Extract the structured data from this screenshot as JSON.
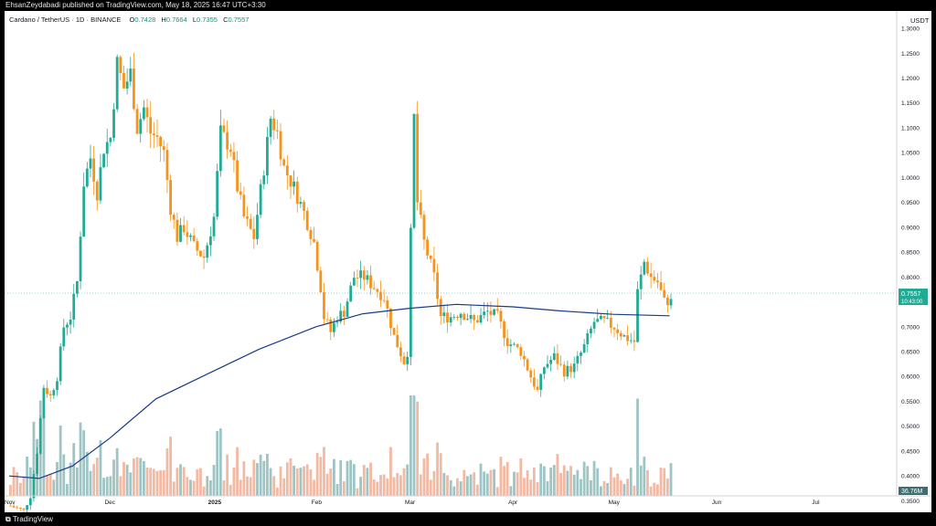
{
  "header": {
    "publish_line": "EhsanZeydabadi published on TradingView.com, May 18, 2025 16:47 UTC+3:30"
  },
  "footer": {
    "brand": "TradingView"
  },
  "legend": {
    "symbol": "Cardano / TetherUS · 1D · BINANCE",
    "o_key": "O",
    "o_val": "0.7428",
    "h_key": "H",
    "h_val": "0.7664",
    "l_key": "L",
    "l_val": "0.7355",
    "c_key": "C",
    "c_val": "0.7557"
  },
  "price_scale": {
    "currency": "USDT",
    "last_price": "0.7557",
    "countdown": "10:43:00",
    "volume_label": "36.76M"
  },
  "colors": {
    "up": "#22ab94",
    "down": "#f7931a",
    "ma": "#1a3a8a",
    "vol_up": "#9fc4c4",
    "vol_down": "#f2b9a3",
    "price_line": "#26a69a"
  },
  "chart_data": {
    "type": "candlestick",
    "title": "Cardano / TetherUS · 1D · BINANCE",
    "y_ticks": [
      "1.3000",
      "1.2500",
      "1.2000",
      "1.1500",
      "1.1000",
      "1.0500",
      "1.0000",
      "0.9500",
      "0.9000",
      "0.8500",
      "0.8000",
      "0.7500",
      "0.7000",
      "0.6500",
      "0.6000",
      "0.5500",
      "0.5000",
      "0.4500",
      "0.4000",
      "0.3500"
    ],
    "x_ticks": [
      "Nov",
      "Dec",
      "2025",
      "Feb",
      "Mar",
      "Apr",
      "May",
      "Jun",
      "Jul"
    ],
    "ylim": [
      0.325,
      1.335
    ],
    "last": {
      "open": 0.7428,
      "high": 0.7664,
      "low": 0.7355,
      "close": 0.7557
    },
    "price_path": [
      [
        "2024-11-01",
        0.34
      ],
      [
        "2024-11-05",
        0.33
      ],
      [
        "2024-11-07",
        0.36
      ],
      [
        "2024-11-09",
        0.45
      ],
      [
        "2024-11-11",
        0.58
      ],
      [
        "2024-11-13",
        0.56
      ],
      [
        "2024-11-15",
        0.6
      ],
      [
        "2024-11-17",
        0.7
      ],
      [
        "2024-11-19",
        0.72
      ],
      [
        "2024-11-21",
        0.79
      ],
      [
        "2024-11-23",
        0.99
      ],
      [
        "2024-11-25",
        1.04
      ],
      [
        "2024-11-27",
        0.97
      ],
      [
        "2024-11-29",
        1.06
      ],
      [
        "2024-12-01",
        1.08
      ],
      [
        "2024-12-03",
        1.23
      ],
      [
        "2024-12-05",
        1.18
      ],
      [
        "2024-12-07",
        1.21
      ],
      [
        "2024-12-09",
        1.1
      ],
      [
        "2024-12-11",
        1.14
      ],
      [
        "2024-12-13",
        1.09
      ],
      [
        "2024-12-15",
        1.08
      ],
      [
        "2024-12-17",
        1.05
      ],
      [
        "2024-12-19",
        0.94
      ],
      [
        "2024-12-21",
        0.88
      ],
      [
        "2024-12-23",
        0.9
      ],
      [
        "2024-12-26",
        0.86
      ],
      [
        "2024-12-29",
        0.84
      ],
      [
        "2025-01-01",
        0.92
      ],
      [
        "2025-01-03",
        1.09
      ],
      [
        "2025-01-06",
        1.06
      ],
      [
        "2025-01-08",
        0.98
      ],
      [
        "2025-01-10",
        0.92
      ],
      [
        "2025-01-13",
        0.88
      ],
      [
        "2025-01-16",
        1.02
      ],
      [
        "2025-01-18",
        1.12
      ],
      [
        "2025-01-20",
        1.09
      ],
      [
        "2025-01-22",
        1.02
      ],
      [
        "2025-01-25",
        0.98
      ],
      [
        "2025-01-28",
        0.93
      ],
      [
        "2025-01-31",
        0.87
      ],
      [
        "2025-02-02",
        0.78
      ],
      [
        "2025-02-03",
        0.72
      ],
      [
        "2025-02-05",
        0.69
      ],
      [
        "2025-02-07",
        0.72
      ],
      [
        "2025-02-09",
        0.73
      ],
      [
        "2025-02-12",
        0.8
      ],
      [
        "2025-02-15",
        0.8
      ],
      [
        "2025-02-18",
        0.78
      ],
      [
        "2025-02-21",
        0.76
      ],
      [
        "2025-02-24",
        0.68
      ],
      [
        "2025-02-27",
        0.63
      ],
      [
        "2025-02-28",
        0.65
      ],
      [
        "2025-03-02",
        1.12
      ],
      [
        "2025-03-03",
        0.95
      ],
      [
        "2025-03-05",
        0.87
      ],
      [
        "2025-03-08",
        0.8
      ],
      [
        "2025-03-10",
        0.72
      ],
      [
        "2025-03-13",
        0.72
      ],
      [
        "2025-03-16",
        0.73
      ],
      [
        "2025-03-20",
        0.71
      ],
      [
        "2025-03-24",
        0.73
      ],
      [
        "2025-03-27",
        0.72
      ],
      [
        "2025-03-30",
        0.67
      ],
      [
        "2025-04-03",
        0.65
      ],
      [
        "2025-04-06",
        0.6
      ],
      [
        "2025-04-08",
        0.57
      ],
      [
        "2025-04-10",
        0.62
      ],
      [
        "2025-04-13",
        0.64
      ],
      [
        "2025-04-16",
        0.61
      ],
      [
        "2025-04-19",
        0.62
      ],
      [
        "2025-04-22",
        0.66
      ],
      [
        "2025-04-25",
        0.71
      ],
      [
        "2025-04-28",
        0.71
      ],
      [
        "2025-05-01",
        0.7
      ],
      [
        "2025-05-04",
        0.68
      ],
      [
        "2025-05-07",
        0.67
      ],
      [
        "2025-05-08",
        0.77
      ],
      [
        "2025-05-10",
        0.83
      ],
      [
        "2025-05-12",
        0.8
      ],
      [
        "2025-05-14",
        0.79
      ],
      [
        "2025-05-16",
        0.75
      ],
      [
        "2025-05-18",
        0.7557
      ]
    ],
    "ma_path": [
      [
        "2024-11-01",
        0.4
      ],
      [
        "2024-11-10",
        0.395
      ],
      [
        "2024-11-20",
        0.42
      ],
      [
        "2024-12-01",
        0.475
      ],
      [
        "2024-12-15",
        0.555
      ],
      [
        "2025-01-01",
        0.61
      ],
      [
        "2025-01-15",
        0.655
      ],
      [
        "2025-02-01",
        0.7
      ],
      [
        "2025-02-15",
        0.726
      ],
      [
        "2025-03-01",
        0.737
      ],
      [
        "2025-03-15",
        0.745
      ],
      [
        "2025-04-01",
        0.74
      ],
      [
        "2025-04-15",
        0.732
      ],
      [
        "2025-05-01",
        0.725
      ],
      [
        "2025-05-18",
        0.722
      ]
    ],
    "volume_units": "M",
    "volume_last": 36.76
  }
}
